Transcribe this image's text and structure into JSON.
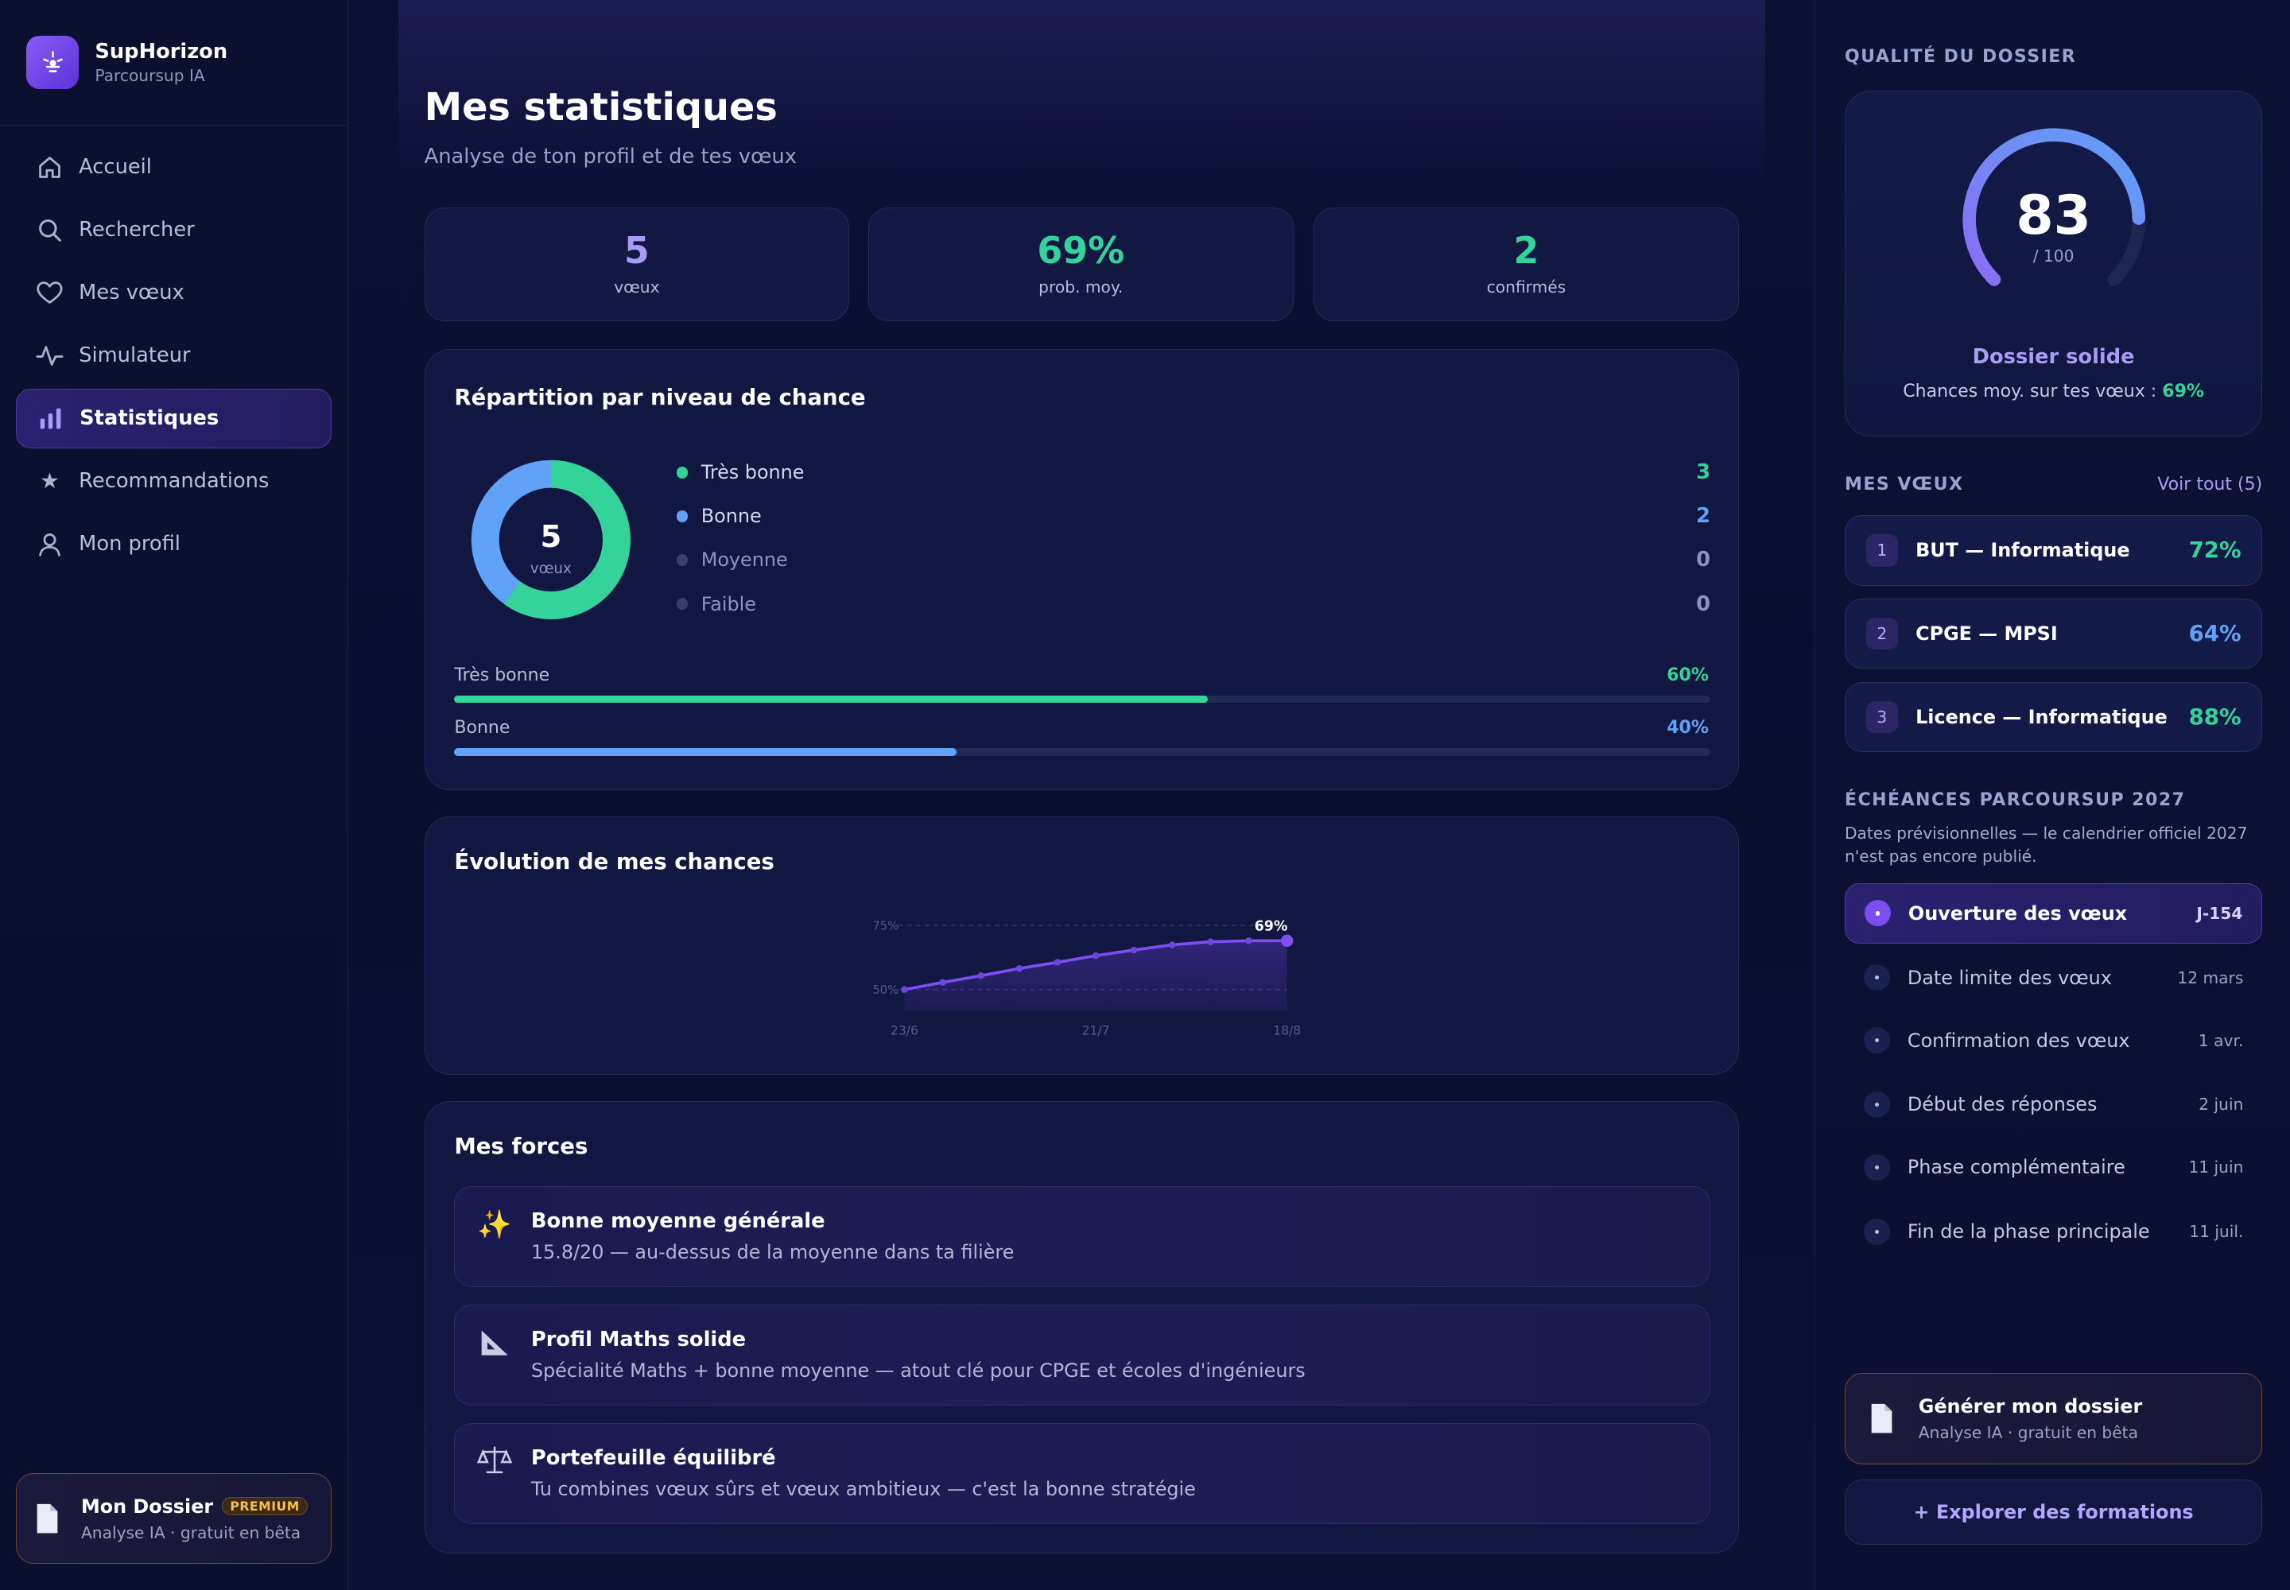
{
  "brand": {
    "name": "SupHorizon",
    "subtitle": "Parcoursup IA"
  },
  "sidebar": {
    "items": [
      {
        "label": "Accueil",
        "icon": "home-icon"
      },
      {
        "label": "Rechercher",
        "icon": "search-icon"
      },
      {
        "label": "Mes vœux",
        "icon": "heart-icon"
      },
      {
        "label": "Simulateur",
        "icon": "activity-icon"
      },
      {
        "label": "Statistiques",
        "icon": "bar-chart-icon",
        "active": true
      },
      {
        "label": "Recommandations",
        "icon": "star-icon"
      },
      {
        "label": "Mon profil",
        "icon": "user-icon"
      }
    ],
    "dossier": {
      "title": "Mon Dossier",
      "badge": "PREMIUM",
      "subtitle": "Analyse IA · gratuit en bêta"
    }
  },
  "main": {
    "title": "Mes statistiques",
    "subtitle": "Analyse de ton profil et de tes vœux",
    "kpis": [
      {
        "value": "5",
        "label": "vœux",
        "color": "#a99bf8"
      },
      {
        "value": "69%",
        "label": "prob. moy.",
        "color": "#34d39a"
      },
      {
        "value": "2",
        "label": "confirmés",
        "color": "#34d39a"
      }
    ],
    "repartition": {
      "title": "Répartition par niveau de chance",
      "center_value": "5",
      "center_label": "vœux",
      "legend": [
        {
          "label": "Très bonne",
          "value": "3",
          "color": "#34d39a"
        },
        {
          "label": "Bonne",
          "value": "2",
          "color": "#5fa2f7"
        },
        {
          "label": "Moyenne",
          "value": "0",
          "color": "#3a3f68"
        },
        {
          "label": "Faible",
          "value": "0",
          "color": "#3a3f68"
        }
      ],
      "bars": [
        {
          "label": "Très bonne",
          "pct": "60%",
          "fraction": 0.6,
          "color": "#34d39a"
        },
        {
          "label": "Bonne",
          "pct": "40%",
          "fraction": 0.4,
          "color": "#5fa2f7"
        }
      ]
    },
    "evolution": {
      "title": "Évolution de mes chances"
    },
    "forces": {
      "title": "Mes forces",
      "items": [
        {
          "icon": "sparkles-icon",
          "title": "Bonne moyenne générale",
          "desc": "15.8/20 — au-dessus de la moyenne dans ta filière"
        },
        {
          "icon": "triangle-ruler-icon",
          "title": "Profil Maths solide",
          "desc": "Spécialité Maths + bonne moyenne — atout clé pour CPGE et écoles d'ingénieurs"
        },
        {
          "icon": "balance-scale-icon",
          "title": "Portefeuille équilibré",
          "desc": "Tu combines vœux sûrs et vœux ambitieux — c'est la bonne stratégie"
        }
      ]
    }
  },
  "chart_data": {
    "type": "line",
    "x": [
      "23/6",
      "",
      "",
      "",
      "",
      "",
      "",
      "",
      "",
      "",
      "18/8"
    ],
    "xtick_labels": [
      "23/6",
      "21/7",
      "18/8"
    ],
    "ytick_labels": [
      "75%",
      "50%"
    ],
    "series": [
      {
        "values": [
          50,
          52.8,
          55.4,
          58.2,
          60.6,
          63.2,
          65.4,
          67.4,
          68.6,
          69,
          69
        ]
      }
    ],
    "ylim": [
      45,
      80
    ],
    "annotation": "69%",
    "grid": true
  },
  "right": {
    "quality": {
      "heading": "QUALITÉ DU DOSSIER",
      "score": "83",
      "score_fraction": 0.83,
      "max": "/ 100",
      "title": "Dossier solide",
      "subtitle": "Chances moy. sur tes vœux :",
      "subtitle_value": "69%"
    },
    "voeux": {
      "heading": "MES VŒUX",
      "see_all": "Voir tout (5)",
      "items": [
        {
          "num": "1",
          "name": "BUT — Informatique",
          "pct": "72%",
          "color": "#34d39a"
        },
        {
          "num": "2",
          "name": "CPGE — MPSI",
          "pct": "64%",
          "color": "#5fa2f7"
        },
        {
          "num": "3",
          "name": "Licence — Informatique",
          "pct": "88%",
          "color": "#34d39a"
        }
      ]
    },
    "echeances": {
      "heading": "ÉCHÉANCES PARCOURSUP 2027",
      "note": "Dates prévisionnelles — le calendrier officiel 2027 n'est pas encore publié.",
      "items": [
        {
          "name": "Ouverture des vœux",
          "date": "J-154",
          "active": true
        },
        {
          "name": "Date limite des vœux",
          "date": "12 mars"
        },
        {
          "name": "Confirmation des vœux",
          "date": "1 avr."
        },
        {
          "name": "Début des réponses",
          "date": "2 juin"
        },
        {
          "name": "Phase complémentaire",
          "date": "11 juin"
        },
        {
          "name": "Fin de la phase principale",
          "date": "11 juil."
        }
      ]
    },
    "generate": {
      "title": "Générer mon dossier",
      "subtitle": "Analyse IA · gratuit en bêta"
    },
    "explore": "+ Explorer des formations"
  }
}
